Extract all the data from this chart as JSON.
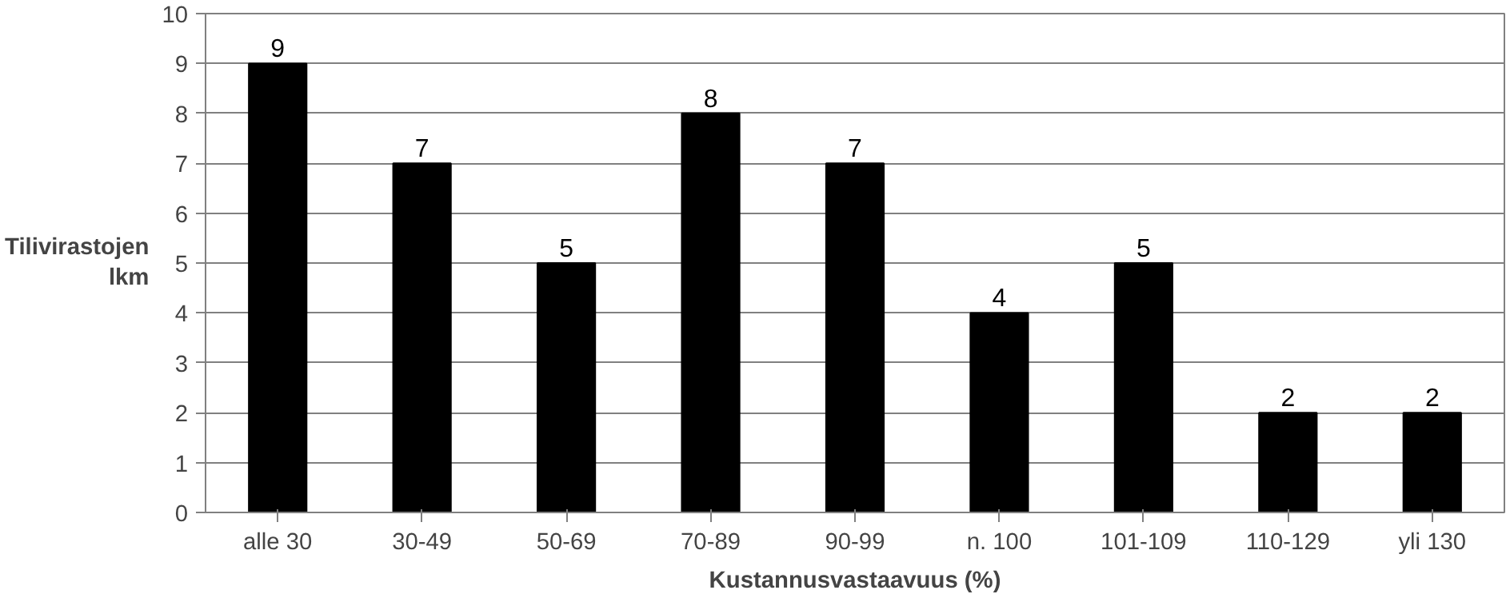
{
  "chart_data": {
    "type": "bar",
    "xlabel": "Kustannusvastaavuus (%)",
    "ylabel": "Tilivirastojen\nlkm",
    "categories": [
      "alle 30",
      "30-49",
      "50-69",
      "70-89",
      "90-99",
      "n. 100",
      "101-109",
      "110-129",
      "yli 130"
    ],
    "values": [
      9,
      7,
      5,
      8,
      7,
      4,
      5,
      2,
      2
    ],
    "color": "#000000",
    "ylim": [
      0,
      10
    ],
    "yticks": [
      0,
      1,
      2,
      3,
      4,
      5,
      6,
      7,
      8,
      9,
      10
    ],
    "grid": "y",
    "data_labels": true
  }
}
